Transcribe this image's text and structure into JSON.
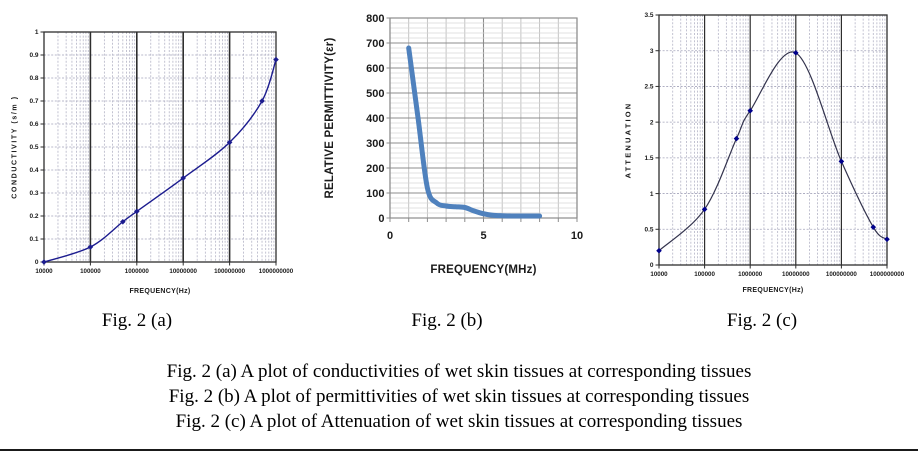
{
  "figure": {
    "panel_captions": {
      "a": "Fig. 2 (a)",
      "b": "Fig. 2 (b)",
      "c": "Fig. 2 (c)"
    },
    "description_lines": [
      "Fig. 2 (a) A plot of conductivities of wet skin tissues at corresponding tissues",
      "Fig. 2 (b) A plot of permittivities of wet skin tissues at corresponding tissues",
      "Fig. 2 (c) A plot of Attenuation of wet skin tissues at corresponding tissues"
    ]
  },
  "chart_data": [
    {
      "id": "fig-2a-conductivity",
      "type": "line",
      "title": "",
      "xlabel": "FREQUENCY(Hz)",
      "ylabel": "CONDUCTIVITY (s/m )",
      "x_scale": "log",
      "xlim": [
        10000,
        1000000000
      ],
      "ylim": [
        0,
        1
      ],
      "x": [
        10000,
        100000,
        500000,
        1000000,
        10000000,
        100000000,
        500000000,
        1000000000
      ],
      "values": [
        0.0,
        0.065,
        0.175,
        0.22,
        0.365,
        0.52,
        0.7,
        0.88
      ],
      "x_ticks": [
        10000,
        100000,
        1000000,
        10000000,
        100000000,
        1000000000
      ],
      "x_tick_labels": [
        "10000",
        "100000",
        "1000000",
        "10000000",
        "100000000",
        "1000000000"
      ],
      "y_ticks": [
        0,
        0.1,
        0.2,
        0.3,
        0.4,
        0.5,
        0.6,
        0.7,
        0.8,
        0.9,
        1
      ],
      "y_tick_labels": [
        "0",
        "0.1",
        "0.2",
        "0.3",
        "0.4",
        "0.5",
        "0.6",
        "0.7",
        "0.8",
        "0.9",
        "1"
      ],
      "grid": "log-minor",
      "legend": "none",
      "line_color": "#1c1c8f",
      "marker": "diamond",
      "marker_color": "#1c1c8f"
    },
    {
      "id": "fig-2b-relative-permittivity",
      "type": "line",
      "title": "",
      "xlabel": "FREQUENCY(MHz)",
      "ylabel": "RELATIVE PERMITTIVITY(εr)",
      "x_scale": "linear",
      "xlim": [
        0,
        10
      ],
      "ylim": [
        0,
        800
      ],
      "x": [
        1,
        1.5,
        2,
        2.5,
        3,
        3.5,
        4,
        4.5,
        5,
        5.5,
        6,
        6.5,
        7,
        7.5,
        8
      ],
      "values": [
        680,
        400,
        120,
        60,
        48,
        45,
        42,
        28,
        17,
        11,
        9,
        8,
        8,
        8,
        8
      ],
      "x_ticks": [
        0,
        5,
        10
      ],
      "x_tick_labels": [
        "0",
        "5",
        "10"
      ],
      "y_ticks": [
        0,
        100,
        200,
        300,
        400,
        500,
        600,
        700,
        800
      ],
      "y_tick_labels": [
        "0",
        "100",
        "200",
        "300",
        "400",
        "500",
        "600",
        "700",
        "800"
      ],
      "y_minor_step": 20,
      "grid": "excel",
      "legend": "none",
      "line_color": "#4f81bd",
      "marker": "none",
      "marker_color": "#4f81bd"
    },
    {
      "id": "fig-2c-attenuation",
      "type": "line",
      "title": "",
      "xlabel": "FREQUENCY(Hz)",
      "ylabel": "ATTENUATION",
      "x_scale": "log",
      "xlim": [
        10000,
        1000000000
      ],
      "ylim": [
        0,
        3.5
      ],
      "x": [
        10000,
        100000,
        500000,
        1000000,
        10000000,
        100000000,
        500000000,
        1000000000
      ],
      "values": [
        0.2,
        0.78,
        1.77,
        2.16,
        2.97,
        1.45,
        0.53,
        0.36
      ],
      "x_ticks": [
        10000,
        100000,
        1000000,
        10000000,
        100000000,
        1000000000
      ],
      "x_tick_labels": [
        "10000",
        "100000",
        "1000000",
        "10000000",
        "100000000",
        "1000000000"
      ],
      "y_ticks": [
        0,
        0.5,
        1,
        1.5,
        2,
        2.5,
        3,
        3.5
      ],
      "y_tick_labels": [
        "0",
        "0.5",
        "1",
        "1.5",
        "2",
        "2.5",
        "3",
        "3.5"
      ],
      "grid": "log-minor",
      "legend": "none",
      "line_color": "#33334d",
      "marker": "diamond",
      "marker_color": "#00008b"
    }
  ]
}
